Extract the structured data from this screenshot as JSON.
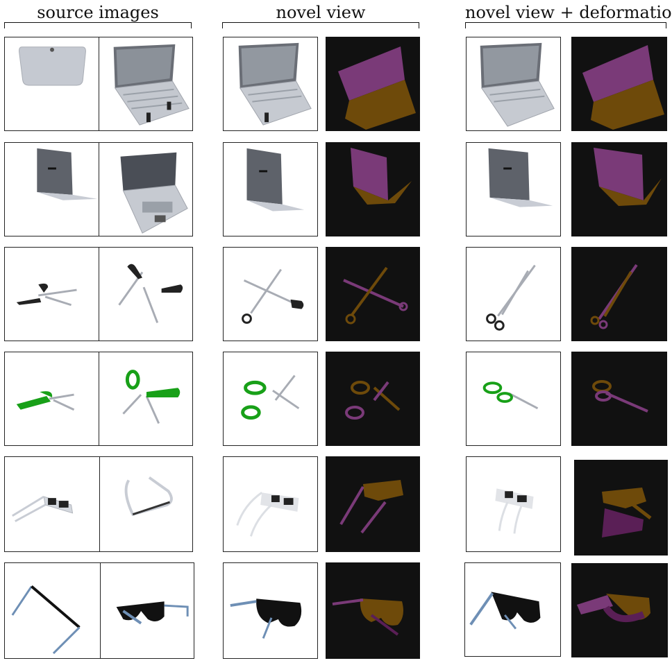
{
  "headers": {
    "source_images": "source images",
    "novel_view": "novel view",
    "novel_view_deformation": "novel view + deformation"
  },
  "colors": {
    "background": "#ffffff",
    "mask_background": "#111111",
    "part_magenta": "#7a3a78",
    "part_orange": "#6e4a0a",
    "laptop_gray": "#c8ccd4",
    "green_handle": "#18a018",
    "blue_temple": "#6e8fb5"
  },
  "rows": [
    {
      "object": "laptop",
      "state": "open-flat"
    },
    {
      "object": "laptop",
      "state": "open-upright"
    },
    {
      "object": "scissors",
      "state": "black-handles"
    },
    {
      "object": "scissors",
      "state": "green-handles"
    },
    {
      "object": "glasses",
      "state": "white-frame"
    },
    {
      "object": "glasses",
      "state": "black-frame"
    }
  ]
}
